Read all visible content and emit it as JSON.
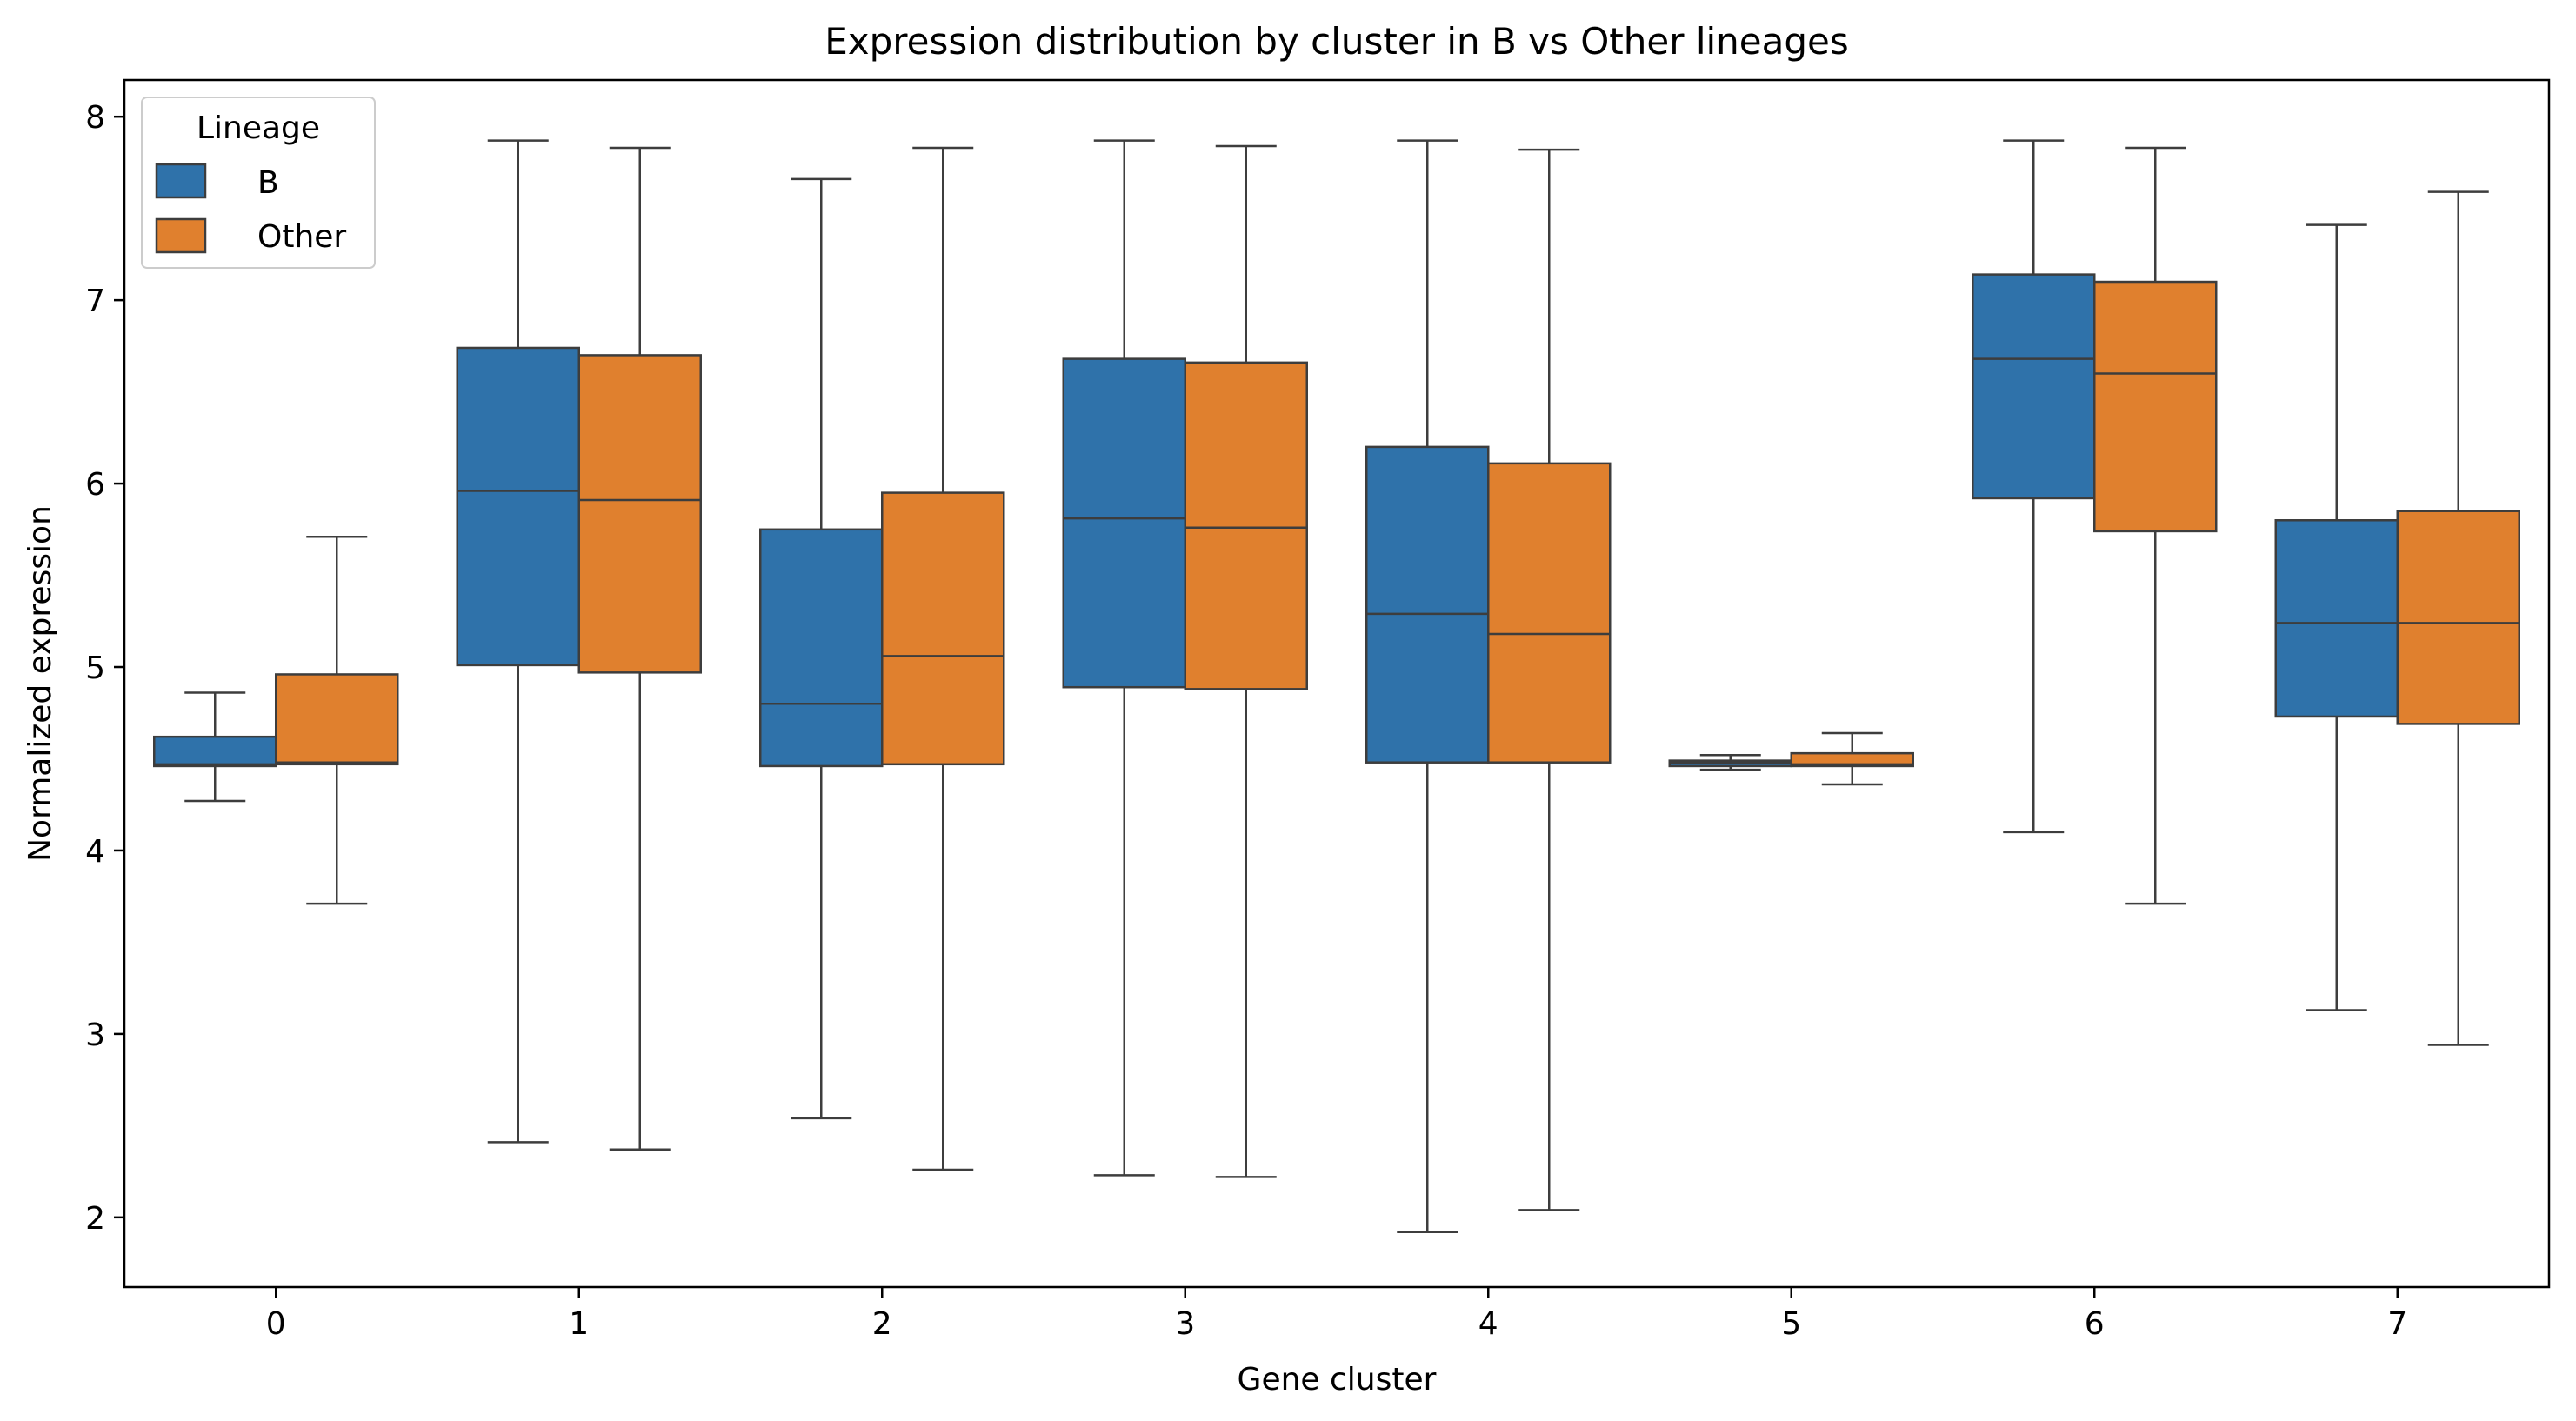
{
  "chart_data": {
    "type": "box",
    "title": "Expression distribution by cluster in B vs Other lineages",
    "xlabel": "Gene cluster",
    "ylabel": "Normalized expression",
    "ylim": [
      1.62,
      8.2
    ],
    "yticks": [
      2,
      3,
      4,
      5,
      6,
      7,
      8
    ],
    "categories": [
      "0",
      "1",
      "2",
      "3",
      "4",
      "5",
      "6",
      "7"
    ],
    "grid": false,
    "legend": {
      "title": "Lineage",
      "position": "top-left"
    },
    "series": [
      {
        "name": "B",
        "color": "#2f72aa",
        "boxes": [
          {
            "whislo": 4.27,
            "q1": 4.46,
            "med": 4.47,
            "q3": 4.62,
            "whishi": 4.86
          },
          {
            "whislo": 2.41,
            "q1": 5.01,
            "med": 5.96,
            "q3": 6.74,
            "whishi": 7.87
          },
          {
            "whislo": 2.54,
            "q1": 4.46,
            "med": 4.8,
            "q3": 5.75,
            "whishi": 7.66
          },
          {
            "whislo": 2.23,
            "q1": 4.89,
            "med": 5.81,
            "q3": 6.68,
            "whishi": 7.87
          },
          {
            "whislo": 1.92,
            "q1": 4.48,
            "med": 5.29,
            "q3": 6.2,
            "whishi": 7.87
          },
          {
            "whislo": 4.44,
            "q1": 4.46,
            "med": 4.48,
            "q3": 4.49,
            "whishi": 4.52
          },
          {
            "whislo": 4.1,
            "q1": 5.92,
            "med": 6.68,
            "q3": 7.14,
            "whishi": 7.87
          },
          {
            "whislo": 3.13,
            "q1": 4.73,
            "med": 5.24,
            "q3": 5.8,
            "whishi": 7.41
          }
        ]
      },
      {
        "name": "Other",
        "color": "#e0802e",
        "boxes": [
          {
            "whislo": 3.71,
            "q1": 4.47,
            "med": 4.48,
            "q3": 4.96,
            "whishi": 5.71
          },
          {
            "whislo": 2.37,
            "q1": 4.97,
            "med": 5.91,
            "q3": 6.7,
            "whishi": 7.83
          },
          {
            "whislo": 2.26,
            "q1": 4.47,
            "med": 5.06,
            "q3": 5.95,
            "whishi": 7.83
          },
          {
            "whislo": 2.22,
            "q1": 4.88,
            "med": 5.76,
            "q3": 6.66,
            "whishi": 7.84
          },
          {
            "whislo": 2.04,
            "q1": 4.48,
            "med": 5.18,
            "q3": 6.11,
            "whishi": 7.82
          },
          {
            "whislo": 4.36,
            "q1": 4.46,
            "med": 4.47,
            "q3": 4.53,
            "whishi": 4.64
          },
          {
            "whislo": 3.71,
            "q1": 5.74,
            "med": 6.6,
            "q3": 7.1,
            "whishi": 7.83
          },
          {
            "whislo": 2.94,
            "q1": 4.69,
            "med": 5.24,
            "q3": 5.85,
            "whishi": 7.59
          }
        ]
      }
    ]
  }
}
